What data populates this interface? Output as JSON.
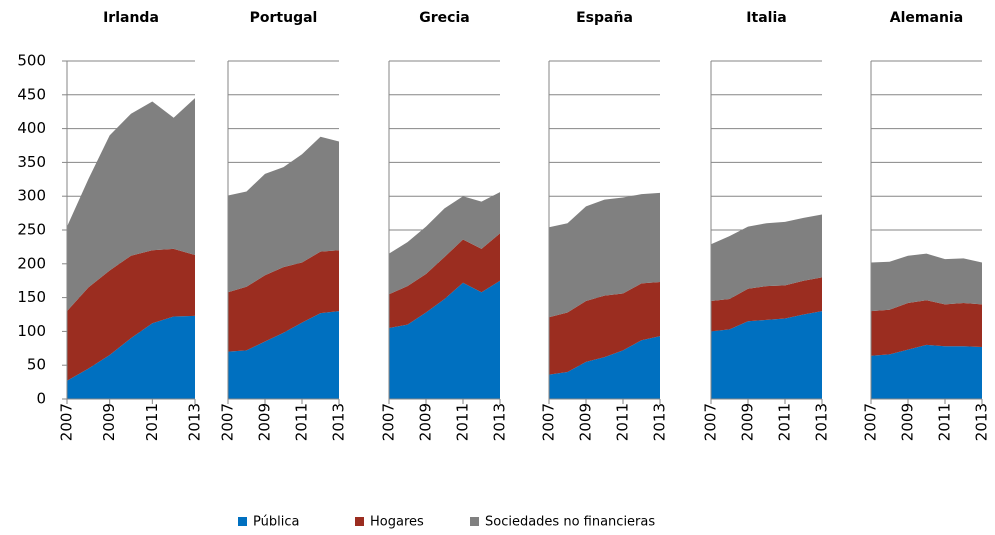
{
  "chart_data": {
    "type": "area",
    "stacked": true,
    "grid": true,
    "legend": "bottom",
    "x": [
      2007,
      2008,
      2009,
      2010,
      2011,
      2012,
      2013
    ],
    "xticks": [
      2007,
      2009,
      2011,
      2013
    ],
    "ylim": [
      0,
      500
    ],
    "yticks": [
      0,
      50,
      100,
      150,
      200,
      250,
      300,
      350,
      400,
      450,
      500
    ],
    "series": [
      {
        "name": "Pública",
        "color": "#0070c0"
      },
      {
        "name": "Hogares",
        "color": "#9b2d20"
      },
      {
        "name": "Sociedades no financieras",
        "color": "#808080"
      }
    ],
    "panels": [
      {
        "title": "Irlanda",
        "values": [
          [
            27,
            45,
            65,
            90,
            112,
            122,
            123
          ],
          [
            103,
            120,
            125,
            122,
            108,
            100,
            90
          ],
          [
            125,
            160,
            200,
            210,
            220,
            194,
            232
          ]
        ]
      },
      {
        "title": "Portugal",
        "values": [
          [
            70,
            72,
            85,
            98,
            113,
            127,
            130
          ],
          [
            88,
            94,
            98,
            97,
            89,
            91,
            90
          ],
          [
            143,
            141,
            150,
            148,
            160,
            170,
            161
          ]
        ]
      },
      {
        "title": "Grecia",
        "values": [
          [
            105,
            110,
            128,
            148,
            172,
            158,
            175
          ],
          [
            50,
            57,
            57,
            62,
            64,
            64,
            70
          ],
          [
            60,
            65,
            70,
            72,
            64,
            70,
            61
          ]
        ]
      },
      {
        "title": "España",
        "values": [
          [
            36,
            40,
            55,
            62,
            72,
            87,
            93
          ],
          [
            85,
            88,
            90,
            91,
            84,
            84,
            80
          ],
          [
            133,
            132,
            140,
            142,
            142,
            132,
            132
          ]
        ]
      },
      {
        "title": "Italia",
        "values": [
          [
            100,
            103,
            115,
            117,
            119,
            125,
            130
          ],
          [
            45,
            45,
            48,
            50,
            49,
            50,
            50
          ],
          [
            84,
            93,
            92,
            93,
            94,
            93,
            93
          ]
        ]
      },
      {
        "title": "Alemania",
        "values": [
          [
            64,
            66,
            73,
            80,
            78,
            78,
            77
          ],
          [
            66,
            66,
            69,
            66,
            62,
            64,
            63
          ],
          [
            72,
            71,
            70,
            69,
            67,
            66,
            62
          ]
        ]
      }
    ]
  }
}
